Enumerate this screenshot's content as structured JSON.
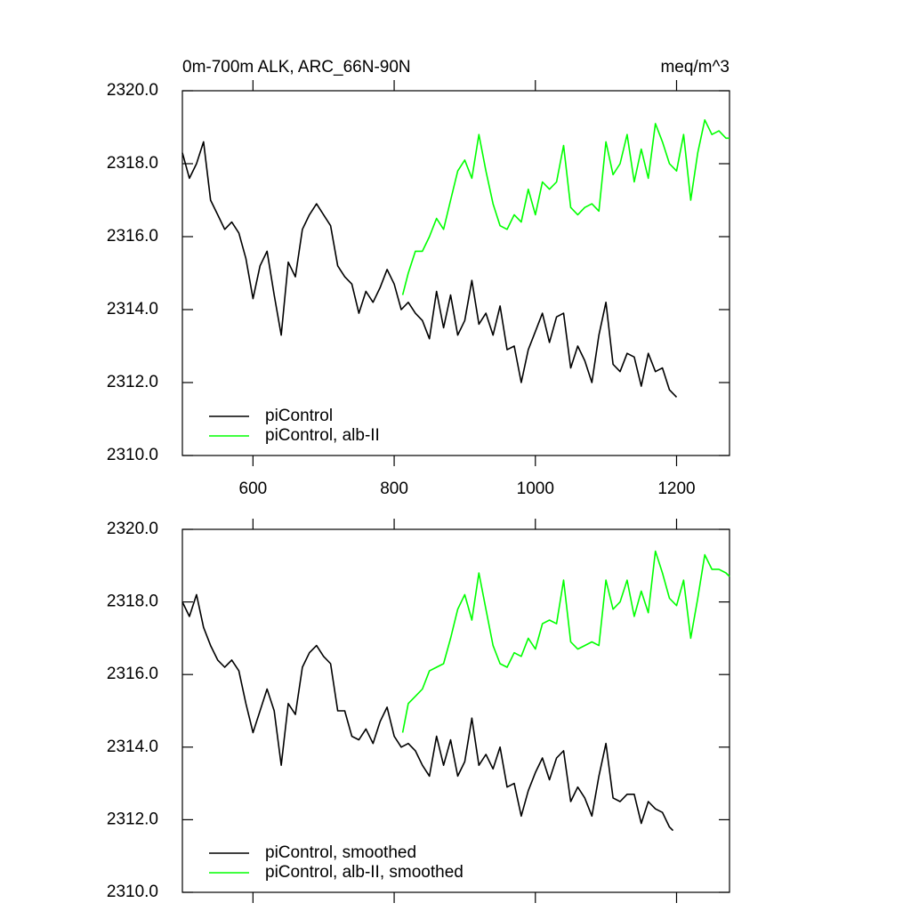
{
  "chart_data": [
    {
      "type": "line",
      "title": "0m-700m ALK, ARC_66N-90N",
      "units": "meq/m^3",
      "xlim": [
        500,
        1275
      ],
      "xticks": [
        600,
        800,
        1000,
        1200
      ],
      "xtick_labels": true,
      "ylim": [
        2310,
        2320
      ],
      "yticks": [
        {
          "value": 2310,
          "label": "2310.0"
        },
        {
          "value": 2312,
          "label": "2312.0"
        },
        {
          "value": 2314,
          "label": "2314.0"
        },
        {
          "value": 2316,
          "label": "2316.0"
        },
        {
          "value": 2318,
          "label": "2318.0"
        },
        {
          "value": 2320,
          "label": "2320.0"
        }
      ],
      "legend": "lower-left",
      "series": [
        {
          "name": "piControl",
          "color": "#000000",
          "x": [
            500,
            510,
            520,
            530,
            540,
            550,
            560,
            570,
            580,
            590,
            600,
            610,
            620,
            630,
            640,
            650,
            660,
            670,
            680,
            690,
            700,
            710,
            720,
            730,
            740,
            750,
            760,
            770,
            780,
            790,
            800,
            810,
            820,
            830,
            840,
            850,
            860,
            870,
            880,
            890,
            900,
            910,
            920,
            930,
            940,
            950,
            960,
            970,
            980,
            990,
            1000,
            1010,
            1020,
            1030,
            1040,
            1050,
            1060,
            1070,
            1080,
            1090,
            1100,
            1110,
            1120,
            1130,
            1140,
            1150,
            1160,
            1170,
            1180,
            1190,
            1200
          ],
          "values": [
            2318.3,
            2317.6,
            2318.0,
            2318.6,
            2317.0,
            2316.6,
            2316.2,
            2316.4,
            2316.1,
            2315.4,
            2314.3,
            2315.2,
            2315.6,
            2314.4,
            2313.3,
            2315.3,
            2314.9,
            2316.2,
            2316.6,
            2316.9,
            2316.6,
            2316.3,
            2315.2,
            2314.9,
            2314.7,
            2313.9,
            2314.5,
            2314.2,
            2314.6,
            2315.1,
            2314.7,
            2314.0,
            2314.2,
            2313.9,
            2313.7,
            2313.2,
            2314.5,
            2313.5,
            2314.4,
            2313.3,
            2313.7,
            2314.8,
            2313.6,
            2313.9,
            2313.3,
            2314.1,
            2312.9,
            2313.0,
            2312.0,
            2312.9,
            2313.4,
            2313.9,
            2313.1,
            2313.8,
            2313.9,
            2312.4,
            2313.0,
            2312.6,
            2312.0,
            2313.3,
            2314.2,
            2312.5,
            2312.3,
            2312.8,
            2312.7,
            2311.9,
            2312.8,
            2312.3,
            2312.4,
            2311.8,
            2311.6
          ]
        },
        {
          "name": "piControl, alb-II",
          "color": "#00ff00",
          "x": [
            812,
            820,
            830,
            840,
            850,
            860,
            870,
            880,
            890,
            900,
            910,
            920,
            930,
            940,
            950,
            960,
            970,
            980,
            990,
            1000,
            1010,
            1020,
            1030,
            1040,
            1050,
            1060,
            1070,
            1080,
            1090,
            1100,
            1110,
            1120,
            1130,
            1140,
            1150,
            1160,
            1170,
            1180,
            1190,
            1200,
            1210,
            1220,
            1230,
            1240,
            1250,
            1260,
            1270,
            1275
          ],
          "values": [
            2314.4,
            2315.0,
            2315.6,
            2315.6,
            2316.0,
            2316.5,
            2316.2,
            2317.0,
            2317.8,
            2318.1,
            2317.6,
            2318.8,
            2317.8,
            2316.9,
            2316.3,
            2316.2,
            2316.6,
            2316.4,
            2317.3,
            2316.6,
            2317.5,
            2317.3,
            2317.5,
            2318.5,
            2316.8,
            2316.6,
            2316.8,
            2316.9,
            2316.7,
            2318.6,
            2317.7,
            2318.0,
            2318.8,
            2317.5,
            2318.4,
            2317.6,
            2319.1,
            2318.6,
            2318.0,
            2317.8,
            2318.8,
            2317.0,
            2318.3,
            2319.2,
            2318.8,
            2318.9,
            2318.7,
            2318.7
          ]
        }
      ]
    },
    {
      "type": "line",
      "xlim": [
        500,
        1275
      ],
      "xticks": [
        600,
        800,
        1000,
        1200
      ],
      "xtick_labels": false,
      "ylim": [
        2310,
        2320
      ],
      "yticks": [
        {
          "value": 2310,
          "label": "2310.0"
        },
        {
          "value": 2312,
          "label": "2312.0"
        },
        {
          "value": 2314,
          "label": "2314.0"
        },
        {
          "value": 2316,
          "label": "2316.0"
        },
        {
          "value": 2318,
          "label": "2318.0"
        },
        {
          "value": 2320,
          "label": "2320.0"
        }
      ],
      "legend": "lower-left",
      "series": [
        {
          "name": "piControl, smoothed",
          "color": "#000000",
          "x": [
            500,
            510,
            520,
            530,
            540,
            550,
            560,
            570,
            580,
            590,
            600,
            610,
            620,
            630,
            640,
            650,
            660,
            670,
            680,
            690,
            700,
            710,
            720,
            730,
            740,
            750,
            760,
            770,
            780,
            790,
            800,
            810,
            820,
            830,
            840,
            850,
            860,
            870,
            880,
            890,
            900,
            910,
            920,
            930,
            940,
            950,
            960,
            970,
            980,
            990,
            1000,
            1010,
            1020,
            1030,
            1040,
            1050,
            1060,
            1070,
            1080,
            1090,
            1100,
            1110,
            1120,
            1130,
            1140,
            1150,
            1160,
            1170,
            1180,
            1190,
            1195
          ],
          "values": [
            2318.0,
            2317.6,
            2318.2,
            2317.3,
            2316.8,
            2316.4,
            2316.2,
            2316.4,
            2316.1,
            2315.2,
            2314.4,
            2315.0,
            2315.6,
            2315.0,
            2313.5,
            2315.2,
            2314.9,
            2316.2,
            2316.6,
            2316.8,
            2316.5,
            2316.3,
            2315.0,
            2315.0,
            2314.3,
            2314.2,
            2314.5,
            2314.1,
            2314.7,
            2315.1,
            2314.3,
            2314.0,
            2314.1,
            2313.9,
            2313.5,
            2313.2,
            2314.3,
            2313.5,
            2314.2,
            2313.2,
            2313.6,
            2314.8,
            2313.5,
            2313.8,
            2313.4,
            2314.0,
            2312.9,
            2313.0,
            2312.1,
            2312.8,
            2313.3,
            2313.7,
            2313.1,
            2313.7,
            2313.9,
            2312.5,
            2312.9,
            2312.6,
            2312.1,
            2313.2,
            2314.1,
            2312.6,
            2312.5,
            2312.7,
            2312.7,
            2311.9,
            2312.5,
            2312.3,
            2312.2,
            2311.8,
            2311.7
          ]
        },
        {
          "name": "piControl, alb-II, smoothed",
          "color": "#00ff00",
          "x": [
            812,
            820,
            830,
            840,
            850,
            860,
            870,
            880,
            890,
            900,
            910,
            920,
            930,
            940,
            950,
            960,
            970,
            980,
            990,
            1000,
            1010,
            1020,
            1030,
            1040,
            1050,
            1060,
            1070,
            1080,
            1090,
            1100,
            1110,
            1120,
            1130,
            1140,
            1150,
            1160,
            1170,
            1180,
            1190,
            1200,
            1210,
            1220,
            1230,
            1240,
            1250,
            1260,
            1270,
            1275
          ],
          "values": [
            2314.4,
            2315.2,
            2315.4,
            2315.6,
            2316.1,
            2316.2,
            2316.3,
            2317.0,
            2317.8,
            2318.2,
            2317.5,
            2318.8,
            2317.8,
            2316.8,
            2316.3,
            2316.2,
            2316.6,
            2316.5,
            2317.0,
            2316.7,
            2317.4,
            2317.5,
            2317.4,
            2318.6,
            2316.9,
            2316.7,
            2316.8,
            2316.9,
            2316.8,
            2318.6,
            2317.8,
            2318.0,
            2318.6,
            2317.6,
            2318.3,
            2317.7,
            2319.4,
            2318.8,
            2318.1,
            2317.9,
            2318.6,
            2317.0,
            2318.1,
            2319.3,
            2318.9,
            2318.9,
            2318.8,
            2318.7
          ]
        }
      ]
    }
  ]
}
